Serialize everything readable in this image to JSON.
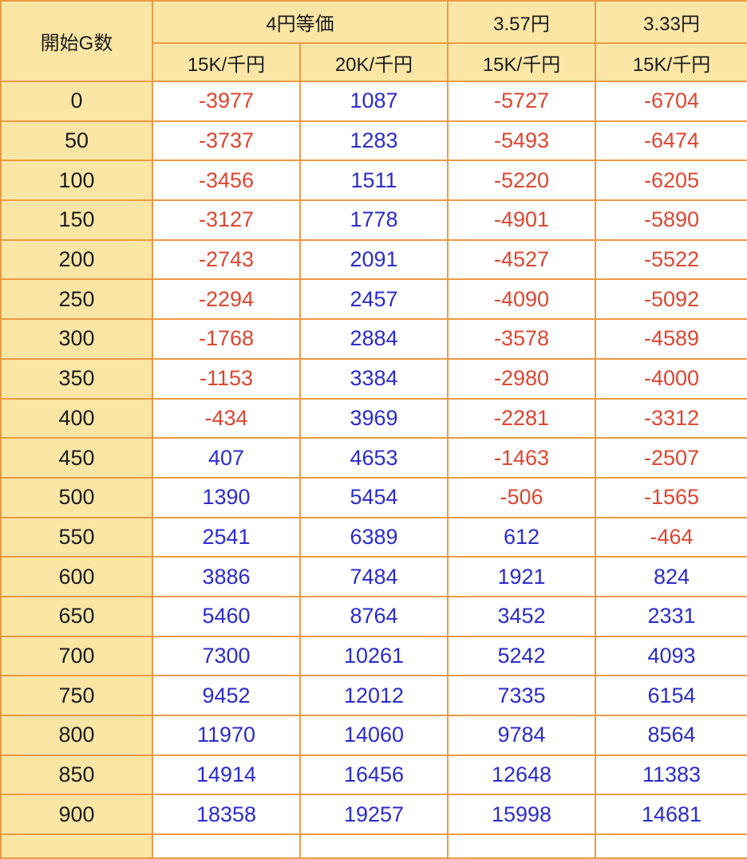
{
  "colors": {
    "border_color": "#EC9A44",
    "header_bg": "#FBE6A5",
    "cell_bg": "#FFFFFF",
    "header_text": "#1B1B1B",
    "negative": "#DC4632",
    "positive": "#2B2BCC"
  },
  "chart_data": {
    "type": "table",
    "corner_header": "開始G数",
    "groups": [
      {
        "label": "4円等価",
        "subs": [
          "15K/千円",
          "20K/千円"
        ]
      },
      {
        "label": "3.57円",
        "subs": [
          "15K/千円"
        ]
      },
      {
        "label": "3.33円",
        "subs": [
          "15K/千円"
        ]
      }
    ],
    "columns": [
      "開始G数",
      "4円等価 15K/千円",
      "4円等価 20K/千円",
      "3.57円 15K/千円",
      "3.33円 15K/千円"
    ],
    "rows": [
      {
        "g": "0",
        "values": [
          -3977,
          1087,
          -5727,
          -6704
        ]
      },
      {
        "g": "50",
        "values": [
          -3737,
          1283,
          -5493,
          -6474
        ]
      },
      {
        "g": "100",
        "values": [
          -3456,
          1511,
          -5220,
          -6205
        ]
      },
      {
        "g": "150",
        "values": [
          -3127,
          1778,
          -4901,
          -5890
        ]
      },
      {
        "g": "200",
        "values": [
          -2743,
          2091,
          -4527,
          -5522
        ]
      },
      {
        "g": "250",
        "values": [
          -2294,
          2457,
          -4090,
          -5092
        ]
      },
      {
        "g": "300",
        "values": [
          -1768,
          2884,
          -3578,
          -4589
        ]
      },
      {
        "g": "350",
        "values": [
          -1153,
          3384,
          -2980,
          -4000
        ]
      },
      {
        "g": "400",
        "values": [
          -434,
          3969,
          -2281,
          -3312
        ]
      },
      {
        "g": "450",
        "values": [
          407,
          4653,
          -1463,
          -2507
        ]
      },
      {
        "g": "500",
        "values": [
          1390,
          5454,
          -506,
          -1565
        ]
      },
      {
        "g": "550",
        "values": [
          2541,
          6389,
          612,
          -464
        ]
      },
      {
        "g": "600",
        "values": [
          3886,
          7484,
          1921,
          824
        ]
      },
      {
        "g": "650",
        "values": [
          5460,
          8764,
          3452,
          2331
        ]
      },
      {
        "g": "700",
        "values": [
          7300,
          10261,
          5242,
          4093
        ]
      },
      {
        "g": "750",
        "values": [
          9452,
          12012,
          7335,
          6154
        ]
      },
      {
        "g": "800",
        "values": [
          11970,
          14060,
          9784,
          8564
        ]
      },
      {
        "g": "850",
        "values": [
          14914,
          16456,
          12648,
          11383
        ]
      },
      {
        "g": "900",
        "values": [
          18358,
          19257,
          15998,
          14681
        ]
      }
    ]
  }
}
